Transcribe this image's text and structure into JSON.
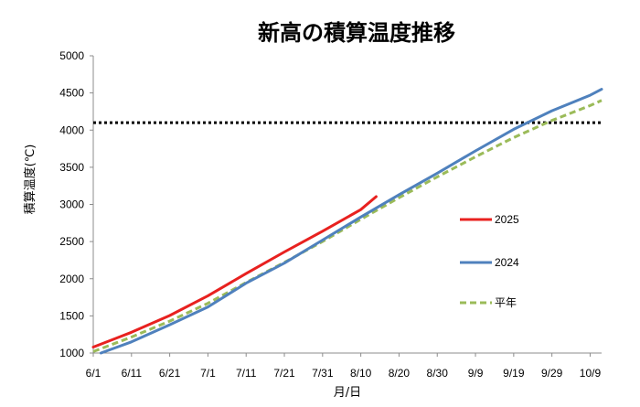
{
  "chart_data": {
    "type": "line",
    "title": "新高の積算温度推移",
    "xlabel": "月/日",
    "ylabel": "積算温度(℃)",
    "x_tick_labels": [
      "6/1",
      "6/11",
      "6/21",
      "7/1",
      "7/11",
      "7/21",
      "7/31",
      "8/10",
      "8/20",
      "8/30",
      "9/9",
      "9/19",
      "9/29",
      "10/9"
    ],
    "y_tick_labels": [
      "1000",
      "1500",
      "2000",
      "2500",
      "3000",
      "3500",
      "4000",
      "4500",
      "5000"
    ],
    "ylim": [
      1000,
      5000
    ],
    "xlim_days_from_jun1": [
      0,
      133
    ],
    "grid": false,
    "legend_position": "right",
    "reference_line": {
      "y": 4100,
      "style": "dotted",
      "color": "#000000"
    },
    "series": [
      {
        "name": "2025",
        "color": "#e8211f",
        "style": "solid",
        "points": [
          {
            "x": "6/1",
            "y": 1080
          },
          {
            "x": "6/11",
            "y": 1280
          },
          {
            "x": "6/21",
            "y": 1505
          },
          {
            "x": "7/1",
            "y": 1770
          },
          {
            "x": "7/11",
            "y": 2070
          },
          {
            "x": "7/21",
            "y": 2360
          },
          {
            "x": "7/31",
            "y": 2640
          },
          {
            "x": "8/10",
            "y": 2930
          },
          {
            "x": "8/14",
            "y": 3105
          }
        ]
      },
      {
        "name": "2024",
        "color": "#4f81bd",
        "style": "solid",
        "points": [
          {
            "x": "6/3",
            "y": 1000
          },
          {
            "x": "6/11",
            "y": 1150
          },
          {
            "x": "6/21",
            "y": 1380
          },
          {
            "x": "7/1",
            "y": 1620
          },
          {
            "x": "7/11",
            "y": 1940
          },
          {
            "x": "7/21",
            "y": 2210
          },
          {
            "x": "7/31",
            "y": 2520
          },
          {
            "x": "8/10",
            "y": 2830
          },
          {
            "x": "8/20",
            "y": 3130
          },
          {
            "x": "8/30",
            "y": 3420
          },
          {
            "x": "9/9",
            "y": 3720
          },
          {
            "x": "9/19",
            "y": 4010
          },
          {
            "x": "9/29",
            "y": 4260
          },
          {
            "x": "10/9",
            "y": 4470
          },
          {
            "x": "10/12",
            "y": 4550
          }
        ]
      },
      {
        "name": "平年",
        "color": "#9bbb59",
        "style": "dashed",
        "points": [
          {
            "x": "6/1",
            "y": 1020
          },
          {
            "x": "6/11",
            "y": 1215
          },
          {
            "x": "6/21",
            "y": 1430
          },
          {
            "x": "7/1",
            "y": 1670
          },
          {
            "x": "7/11",
            "y": 1950
          },
          {
            "x": "7/21",
            "y": 2220
          },
          {
            "x": "7/31",
            "y": 2500
          },
          {
            "x": "8/10",
            "y": 2800
          },
          {
            "x": "8/20",
            "y": 3090
          },
          {
            "x": "8/30",
            "y": 3370
          },
          {
            "x": "9/9",
            "y": 3640
          },
          {
            "x": "9/19",
            "y": 3900
          },
          {
            "x": "9/29",
            "y": 4130
          },
          {
            "x": "10/9",
            "y": 4330
          },
          {
            "x": "10/12",
            "y": 4400
          }
        ]
      }
    ]
  }
}
